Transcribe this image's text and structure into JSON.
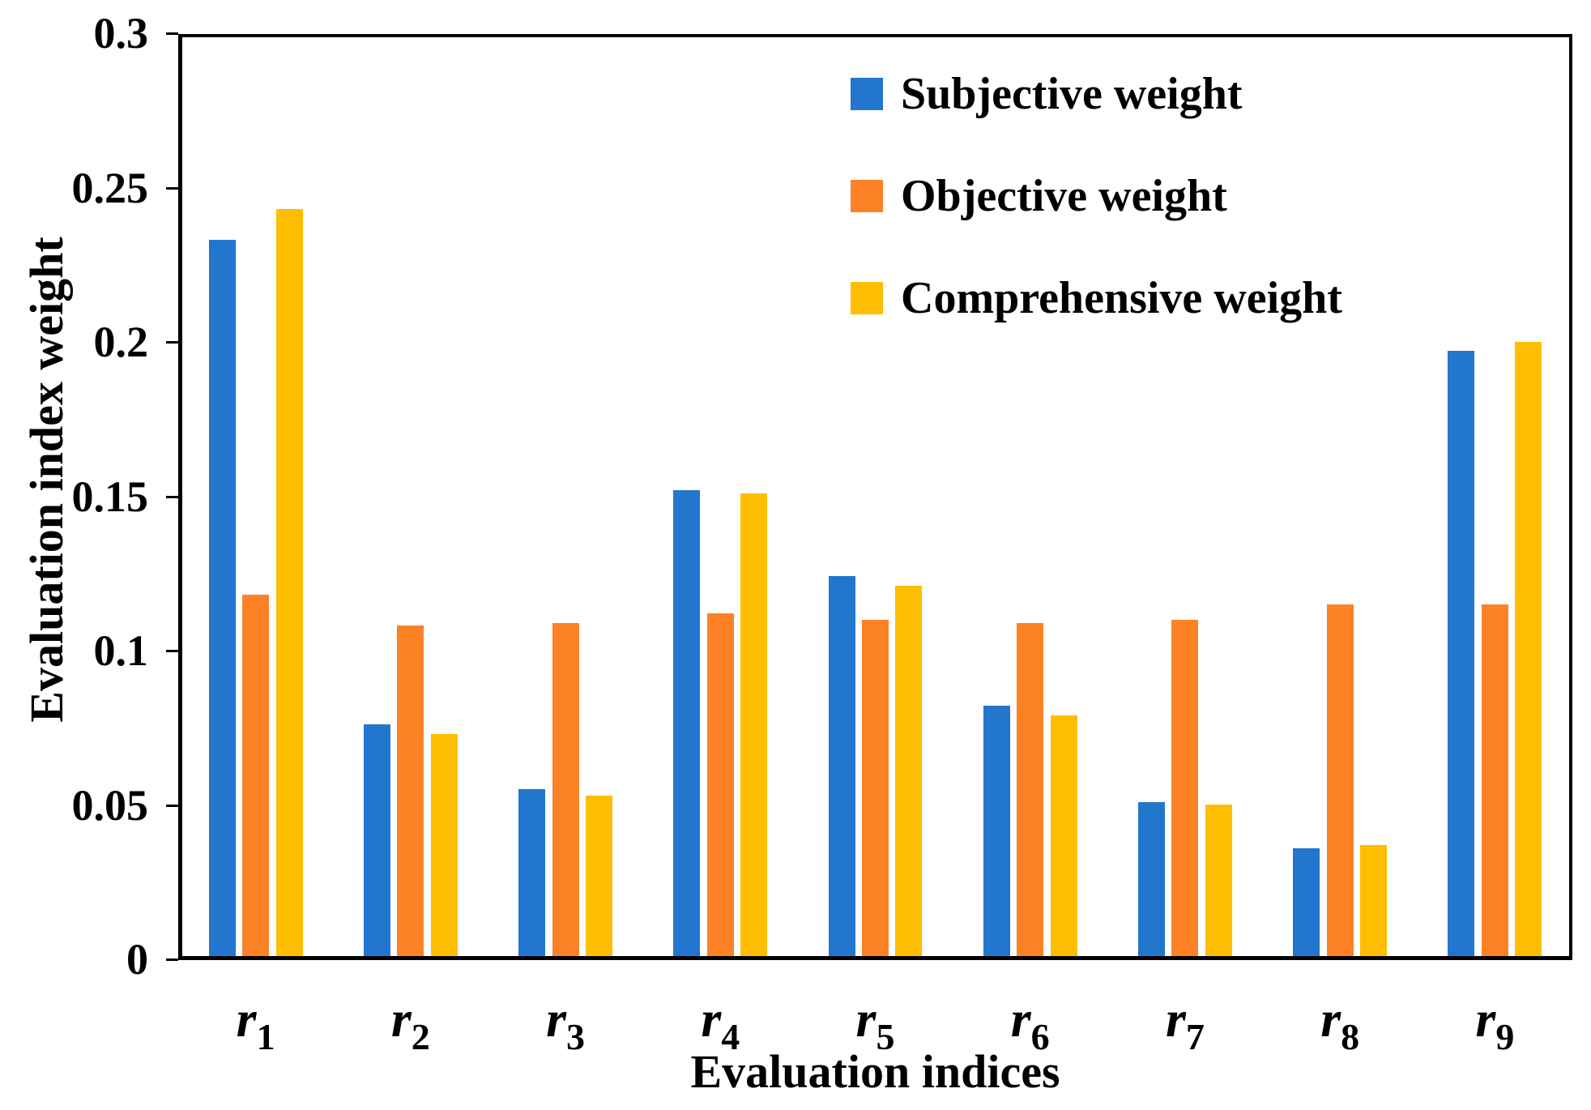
{
  "chart_data": {
    "type": "bar",
    "title": "",
    "categories": [
      {
        "base": "r",
        "sub": "1"
      },
      {
        "base": "r",
        "sub": "2"
      },
      {
        "base": "r",
        "sub": "3"
      },
      {
        "base": "r",
        "sub": "4"
      },
      {
        "base": "r",
        "sub": "5"
      },
      {
        "base": "r",
        "sub": "6"
      },
      {
        "base": "r",
        "sub": "7"
      },
      {
        "base": "r",
        "sub": "8"
      },
      {
        "base": "r",
        "sub": "9"
      }
    ],
    "series": [
      {
        "name": "Subjective weight",
        "color": "#2276CE",
        "values": [
          0.232,
          0.075,
          0.054,
          0.151,
          0.123,
          0.081,
          0.05,
          0.035,
          0.196
        ]
      },
      {
        "name": "Objective weight",
        "color": "#FD8125",
        "values": [
          0.117,
          0.107,
          0.108,
          0.111,
          0.109,
          0.108,
          0.109,
          0.114,
          0.114
        ]
      },
      {
        "name": "Comprehensive weight",
        "color": "#FFBE00",
        "values": [
          0.242,
          0.072,
          0.052,
          0.15,
          0.12,
          0.078,
          0.049,
          0.036,
          0.199
        ]
      }
    ],
    "xlabel": "Evaluation indices",
    "ylabel": "Evaluation index weight",
    "ylim": [
      0,
      0.3
    ],
    "yticks": {
      "values": [
        0,
        0.05,
        0.1,
        0.15,
        0.2,
        0.25,
        0.3
      ],
      "labels": [
        "0",
        "0.05",
        "0.1",
        "0.15",
        "0.2",
        "0.25",
        "0.3"
      ]
    },
    "grid": false,
    "legend_position": "upper-right-inside",
    "axis_color": "#000000",
    "background_color": "#FFFFFF"
  }
}
